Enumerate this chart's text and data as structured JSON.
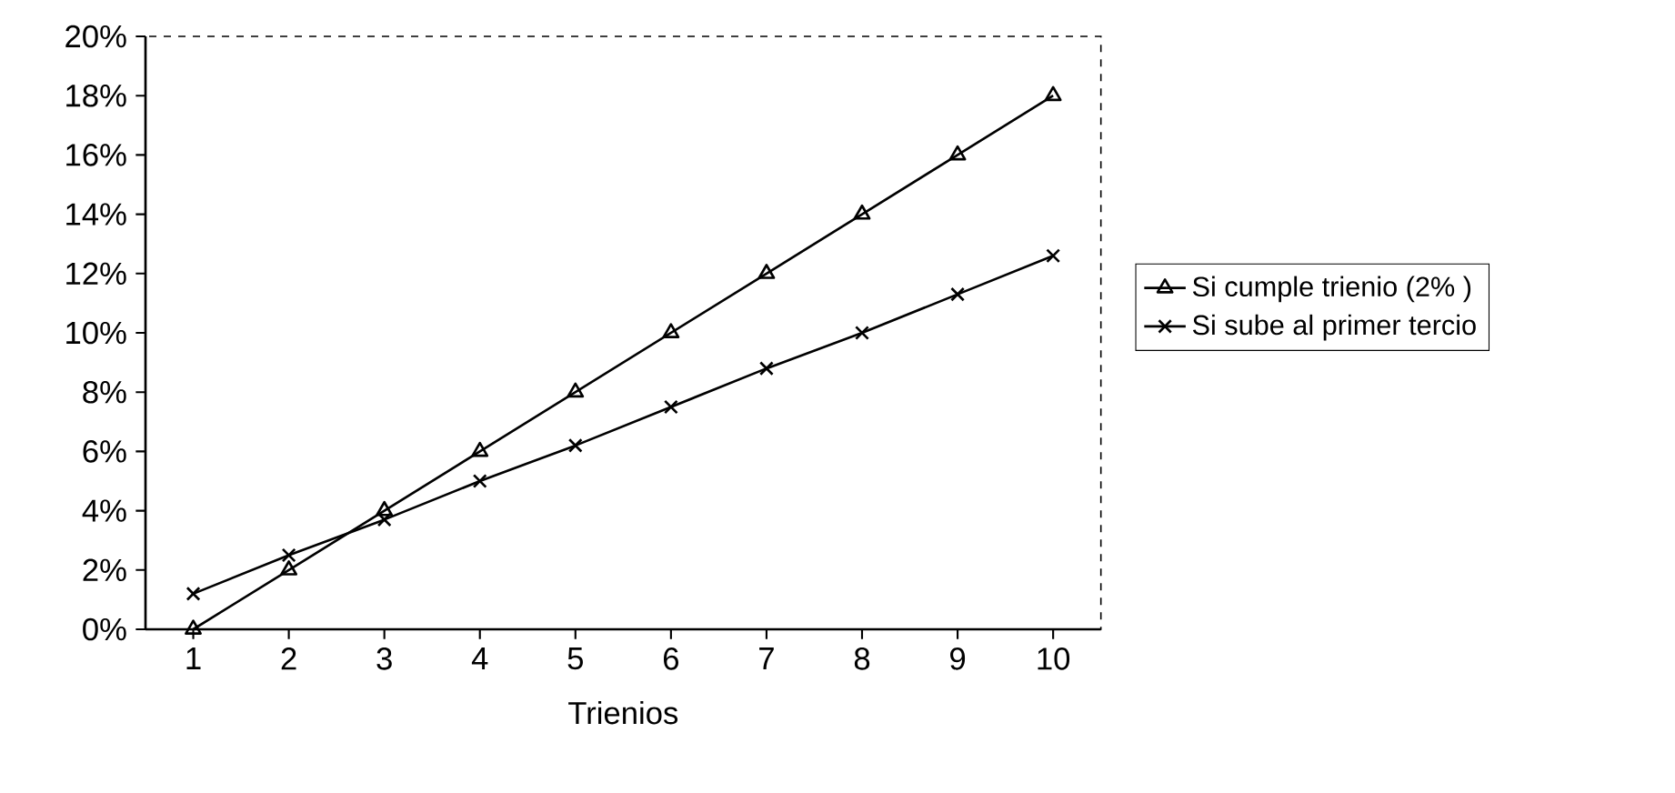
{
  "chart_data": {
    "type": "line",
    "xlabel": "Trienios",
    "categories": [
      "1",
      "2",
      "3",
      "4",
      "5",
      "6",
      "7",
      "8",
      "9",
      "10"
    ],
    "series": [
      {
        "name": "Si cumple trienio (2% )",
        "color": "#000000",
        "marker": "triangle",
        "values": [
          0,
          2,
          4,
          6,
          8,
          10,
          12,
          14,
          16,
          18
        ]
      },
      {
        "name": "Si sube al primer tercio",
        "color": "#000000",
        "marker": "cross",
        "values": [
          1.2,
          2.5,
          3.7,
          5.0,
          6.2,
          7.5,
          8.8,
          10.0,
          11.3,
          12.6
        ]
      }
    ],
    "ylim": [
      0,
      20
    ],
    "yticks": [
      {
        "value": 0,
        "label": "0%"
      },
      {
        "value": 2,
        "label": "2%"
      },
      {
        "value": 4,
        "label": "4%"
      },
      {
        "value": 6,
        "label": "6%"
      },
      {
        "value": 8,
        "label": "8%"
      },
      {
        "value": 10,
        "label": "10%"
      },
      {
        "value": 12,
        "label": "12%"
      },
      {
        "value": 14,
        "label": "14%"
      },
      {
        "value": 16,
        "label": "16%"
      },
      {
        "value": 18,
        "label": "18%"
      },
      {
        "value": 20,
        "label": "20%"
      }
    ],
    "grid": false,
    "legend": "right",
    "line_style": "solid"
  }
}
